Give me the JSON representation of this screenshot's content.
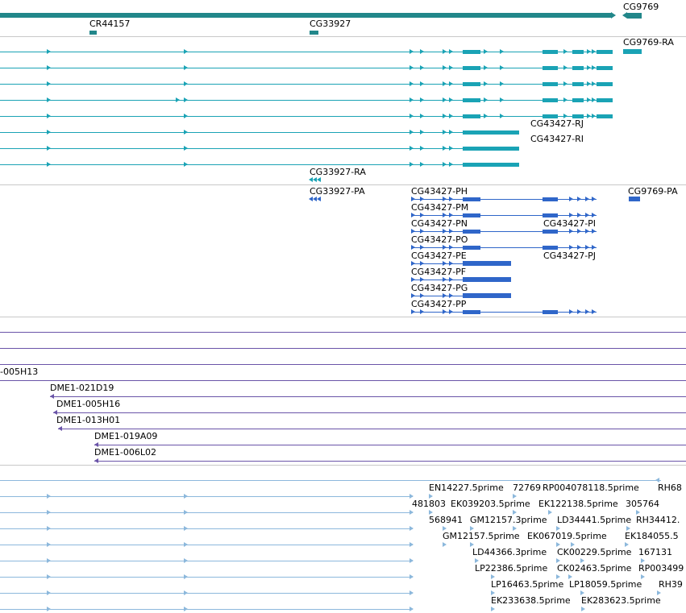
{
  "colors": {
    "gene": "#22878a",
    "transcript": "#1aa3b5",
    "protein": "#2f66c9",
    "clone": "#6a54a8",
    "est": "#8cb8dc",
    "separator": "#c8c8c8"
  },
  "tracks": {
    "genes": {
      "labels": [
        "CG9769",
        "CR44157",
        "CG33927"
      ]
    },
    "transcripts": {
      "labels": [
        "CG9769-RA",
        "CG43427-RJ",
        "CG43427-RI",
        "CG33927-RA"
      ]
    },
    "proteins": {
      "labels": [
        "CG33927-PA",
        "CG43427-PH",
        "CG9769-PA",
        "CG43427-PM",
        "CG43427-PN",
        "CG43427-PI",
        "CG43427-PO",
        "CG43427-PE",
        "CG43427-PJ",
        "CG43427-PF",
        "CG43427-PG",
        "CG43427-PP"
      ]
    },
    "clones": {
      "labels": [
        "-005H13",
        "DME1-021D19",
        "DME1-005H16",
        "DME1-013H01",
        "DME1-019A09",
        "DME1-006L02"
      ]
    },
    "ests": {
      "labels": [
        "EN14227.5prime",
        "72769",
        "RP004078118.5prime",
        "RH68",
        "481803",
        "EK039203.5prime",
        "EK122138.5prime",
        "305764",
        "568941",
        "GM12157.3prime",
        "LD34441.5prime",
        "RH34412.",
        "GM12157.5prime",
        "EK067019.5prime",
        "EK184055.5",
        "LD44366.3prime",
        "CK00229.5prime",
        "167131",
        "LP22386.5prime",
        "CK02463.5prime",
        "RP003499",
        "LP16463.5prime",
        "LP18059.5prime",
        "RH39",
        "EK233638.5prime",
        "EK283623.5prime"
      ]
    }
  }
}
